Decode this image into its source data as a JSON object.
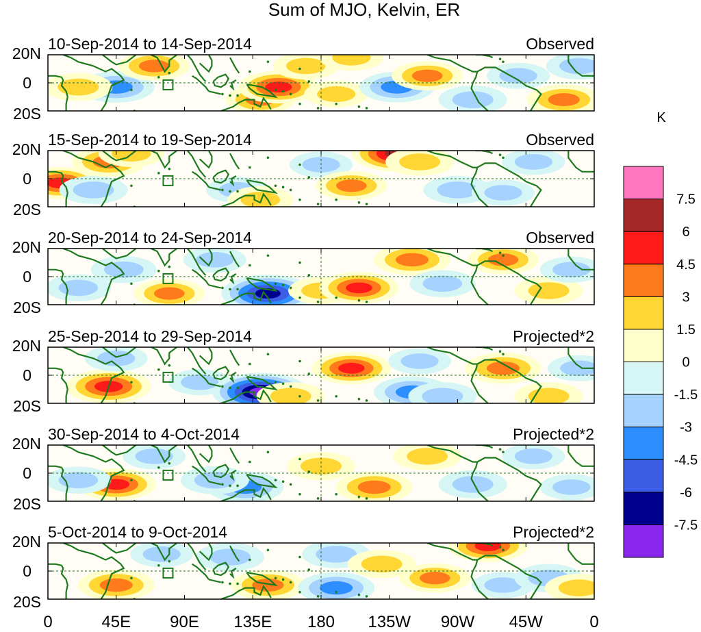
{
  "title": "Sum of MJO, Kelvin, ER",
  "colorbar": {
    "unit": "K",
    "tick_labels": [
      "7.5",
      "6",
      "4.5",
      "3",
      "1.5",
      "0",
      "-1.5",
      "-3",
      "-4.5",
      "-6",
      "-7.5"
    ],
    "colors": [
      "#ff77c0",
      "#a52828",
      "#ff1a1a",
      "#ff7a1a",
      "#ffd633",
      "#ffffcc",
      "#d6f5f5",
      "#a6d2ff",
      "#2d8fff",
      "#3c5ee6",
      "#00008f",
      "#8c28ee"
    ]
  },
  "x_axis": {
    "tick_labels": [
      "0",
      "45E",
      "90E",
      "135E",
      "180",
      "135W",
      "90W",
      "45W",
      "0"
    ]
  },
  "y_axis": {
    "tick_labels": [
      "20N",
      "0",
      "20S"
    ]
  },
  "panels": [
    {
      "date_range": "10-Sep-2014 to 14-Sep-2014",
      "label": "Observed"
    },
    {
      "date_range": "15-Sep-2014 to 19-Sep-2014",
      "label": "Observed"
    },
    {
      "date_range": "20-Sep-2014 to 24-Sep-2014",
      "label": "Observed"
    },
    {
      "date_range": "25-Sep-2014 to 29-Sep-2014",
      "label": "Projected*2"
    },
    {
      "date_range": "30-Sep-2014 to 4-Oct-2014",
      "label": "Projected*2"
    },
    {
      "date_range": "5-Oct-2014 to 9-Oct-2014",
      "label": "Projected*2"
    }
  ],
  "anomaly_centers": [
    [
      [
        45,
        -3,
        -4.5
      ],
      [
        70,
        12,
        3.5
      ],
      [
        140,
        -12,
        3.2
      ],
      [
        152,
        -3,
        5.2
      ],
      [
        170,
        12,
        2.5
      ],
      [
        190,
        -8,
        2.2
      ],
      [
        200,
        18,
        2.2
      ],
      [
        230,
        -3,
        -4.2
      ],
      [
        250,
        5,
        3.5
      ],
      [
        280,
        -12,
        -3.0
      ],
      [
        20,
        -3,
        3.0
      ],
      [
        340,
        -12,
        4.0
      ],
      [
        310,
        5,
        -2.0
      ],
      [
        350,
        12,
        -2.5
      ]
    ],
    [
      [
        8,
        -3,
        5.0
      ],
      [
        30,
        -8,
        -3.0
      ],
      [
        40,
        12,
        4.0
      ],
      [
        55,
        18,
        2.5
      ],
      [
        125,
        -8,
        -2.0
      ],
      [
        140,
        -15,
        2.5
      ],
      [
        180,
        10,
        -2.0
      ],
      [
        200,
        -5,
        3.5
      ],
      [
        230,
        18,
        7.0
      ],
      [
        245,
        12,
        3.0
      ],
      [
        270,
        -8,
        -3.0
      ],
      [
        300,
        -10,
        -2.0
      ],
      [
        320,
        12,
        -2.0
      ]
    ],
    [
      [
        20,
        -8,
        -2.5
      ],
      [
        50,
        5,
        -2.5
      ],
      [
        80,
        -12,
        3.5
      ],
      [
        145,
        -12,
        -7.5
      ],
      [
        180,
        -10,
        2.5
      ],
      [
        205,
        -8,
        5.0
      ],
      [
        240,
        12,
        4.5
      ],
      [
        260,
        -5,
        -2.5
      ],
      [
        300,
        12,
        3.5
      ],
      [
        330,
        -10,
        3.0
      ],
      [
        110,
        12,
        -2.0
      ],
      [
        345,
        5,
        -2.0
      ]
    ],
    [
      [
        40,
        -8,
        6.0
      ],
      [
        45,
        12,
        -2.0
      ],
      [
        100,
        -5,
        -2.0
      ],
      [
        140,
        -12,
        -8.0
      ],
      [
        160,
        -15,
        3.0
      ],
      [
        200,
        5,
        5.0
      ],
      [
        240,
        -12,
        -4.5
      ],
      [
        245,
        10,
        -2.0
      ],
      [
        300,
        5,
        4.5
      ],
      [
        330,
        -15,
        3.0
      ],
      [
        350,
        5,
        -2.0
      ],
      [
        260,
        -15,
        -3.0
      ]
    ],
    [
      [
        45,
        -8,
        5.0
      ],
      [
        20,
        -5,
        -2.5
      ],
      [
        130,
        -10,
        -4.5
      ],
      [
        110,
        -5,
        -3.0
      ],
      [
        180,
        5,
        3.0
      ],
      [
        215,
        -10,
        4.5
      ],
      [
        250,
        12,
        3.0
      ],
      [
        280,
        -8,
        -3.0
      ],
      [
        320,
        12,
        -2.0
      ],
      [
        345,
        -10,
        -2.0
      ],
      [
        70,
        12,
        -2.0
      ]
    ],
    [
      [
        45,
        -10,
        4.5
      ],
      [
        75,
        12,
        -2.0
      ],
      [
        120,
        10,
        -3.0
      ],
      [
        145,
        -10,
        4.0
      ],
      [
        190,
        12,
        -3.0
      ],
      [
        190,
        -12,
        -4.5
      ],
      [
        220,
        5,
        3.0
      ],
      [
        255,
        -5,
        3.5
      ],
      [
        290,
        18,
        5.0
      ],
      [
        300,
        -10,
        -2.0
      ],
      [
        330,
        -5,
        -3.0
      ],
      [
        350,
        -12,
        3.0
      ]
    ]
  ]
}
